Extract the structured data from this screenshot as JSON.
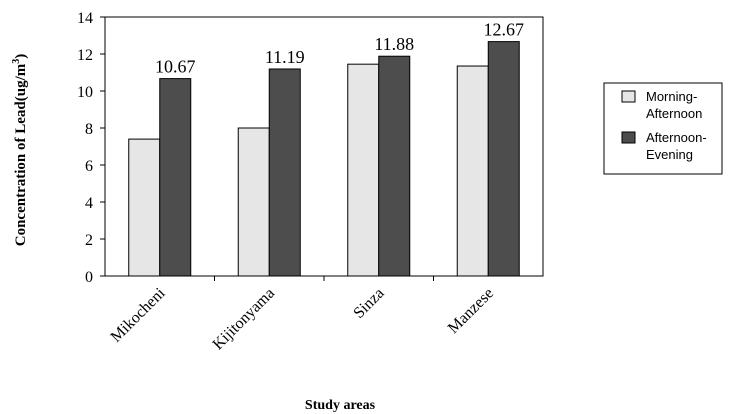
{
  "chart_data": {
    "type": "bar",
    "title": "",
    "xlabel": "Study areas",
    "ylabel": "Concentration of Lead(ug/m",
    "ylabel_superscript": "3",
    "ylim": [
      0,
      14
    ],
    "yticks": [
      0,
      2,
      4,
      6,
      8,
      10,
      12,
      14
    ],
    "categories": [
      "Mikocheni",
      "Kijitonyama",
      "Sinza",
      "Manzese"
    ],
    "series": [
      {
        "name": "Morning-Afternoon",
        "legend_lines": [
          "Morning-",
          "Afternoon"
        ],
        "color": "#e6e6e6",
        "values": [
          7.4,
          8.0,
          11.45,
          11.35
        ],
        "labels": [
          "",
          "",
          "",
          ""
        ]
      },
      {
        "name": "Afternoon-Evening",
        "legend_lines": [
          "Afternoon-",
          "Evening"
        ],
        "color": "#4d4d4d",
        "values": [
          10.67,
          11.19,
          11.88,
          12.67
        ],
        "labels": [
          "10.67",
          "11.19",
          "11.88",
          "12.67"
        ]
      }
    ],
    "grid": false,
    "legend_position": "right"
  }
}
